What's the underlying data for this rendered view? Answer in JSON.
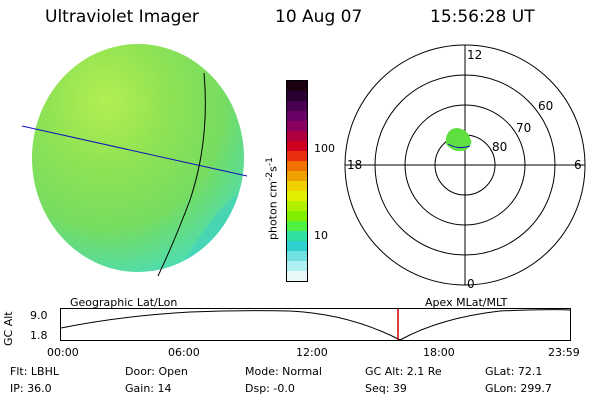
{
  "header": {
    "title": "Ultraviolet Imager",
    "date": "10 Aug 07",
    "time": "15:56:28 UT"
  },
  "colorbar": {
    "label": "photon cm",
    "label_sup1": "-2",
    "label_mid": "s",
    "label_sup2": "-1",
    "ticks": [
      "100",
      "10"
    ],
    "colors": [
      "#1a0010",
      "#2a0033",
      "#4a0050",
      "#6a0066",
      "#8a0060",
      "#b00040",
      "#d00020",
      "#e83010",
      "#f07000",
      "#f0a000",
      "#f0d000",
      "#e0f000",
      "#b0f000",
      "#80f000",
      "#50f040",
      "#30e0a0",
      "#30d0d0",
      "#70e0e0",
      "#b0f0f0",
      "#e8f8f8"
    ]
  },
  "polar": {
    "labels": {
      "top": "12",
      "bottom": "0",
      "left": "18",
      "right": "6"
    },
    "lat_labels": [
      "60",
      "70",
      "80"
    ]
  },
  "timeline": {
    "left_title": "Geographic Lat/Lon",
    "right_title": "Apex MLat/MLT",
    "y_axis_label": "GC Alt",
    "y_ticks": [
      "9.0",
      "1.8"
    ],
    "x_ticks": [
      "00:00",
      "06:00",
      "12:00",
      "18:00",
      "23:59"
    ],
    "cursor_color": "#cc0000"
  },
  "info": {
    "row1": [
      "Flt: LBHL",
      "Door: Open",
      "Mode: Normal",
      "GC Alt: 2.1 Re",
      "GLat: 72.1"
    ],
    "row2": [
      "IP: 36.0",
      "Gain: 14",
      "Dsp: -0.0",
      "Seq: 39",
      "GLon: 299.7"
    ]
  }
}
